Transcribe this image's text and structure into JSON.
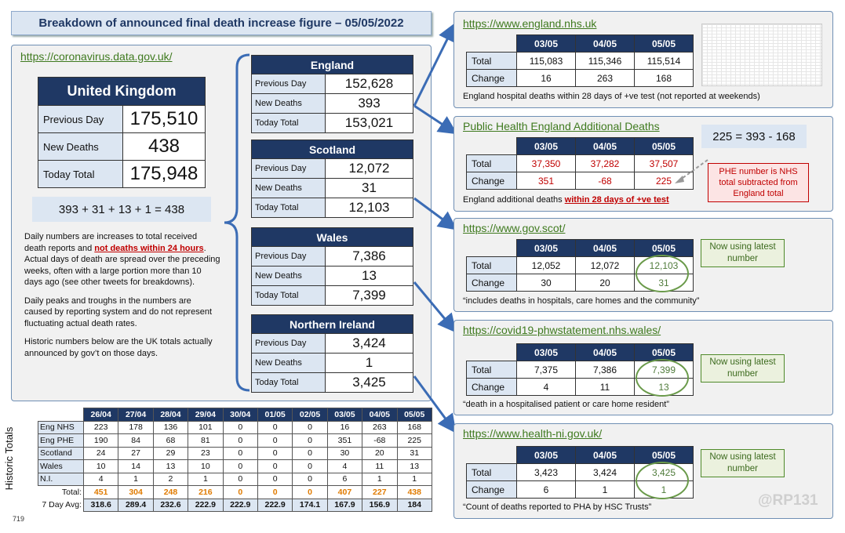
{
  "title": "Breakdown of announced final death increase figure – 05/05/2022",
  "left": {
    "source": "https://coronavirus.data.gov.uk/",
    "uk": {
      "name": "United Kingdom",
      "prev_label": "Previous Day",
      "prev": "175,510",
      "new_label": "New Deaths",
      "new": "438",
      "today_label": "Today Total",
      "today": "175,948"
    },
    "equation": "393 + 31 + 13 + 1 = 438",
    "para1_a": "Daily numbers are increases to total received death reports and ",
    "para1_b": "not deaths within 24 hours",
    "para1_c": ". Actual days of death are spread over the preceding weeks, often with a large portion more than 10 days ago (see other tweets  for breakdowns).",
    "para2": "Daily peaks and troughs in the numbers are caused by reporting system and do not represent fluctuating actual death rates.",
    "para3": "Historic numbers below are the UK totals actually announced by gov’t on those days."
  },
  "regions": [
    {
      "name": "England",
      "prev_label": "Previous Day",
      "prev": "152,628",
      "new_label": "New Deaths",
      "new": "393",
      "today_label": "Today Total",
      "today": "153,021"
    },
    {
      "name": "Scotland",
      "prev_label": "Previous Day",
      "prev": "12,072",
      "new_label": "New Deaths",
      "new": "31",
      "today_label": "Today Total",
      "today": "12,103"
    },
    {
      "name": "Wales",
      "prev_label": "Previous Day",
      "prev": "7,386",
      "new_label": "New Deaths",
      "new": "13",
      "today_label": "Today Total",
      "today": "7,399"
    },
    {
      "name": "Northern Ireland",
      "prev_label": "Previous Day",
      "prev": "3,424",
      "new_label": "New Deaths",
      "new": "1",
      "today_label": "Today Total",
      "today": "3,425"
    }
  ],
  "sources": [
    {
      "link": "https://www.england.nhs.uk",
      "dates": [
        "03/05",
        "04/05",
        "05/05"
      ],
      "total_label": "Total",
      "totals": [
        "115,083",
        "115,346",
        "115,514"
      ],
      "change_label": "Change",
      "changes": [
        "16",
        "263",
        "168"
      ],
      "caption": "England hospital deaths within 28 days of +ve test (not reported at weekends)"
    },
    {
      "link": "Public Health England Additional Deaths",
      "dates": [
        "03/05",
        "04/05",
        "05/05"
      ],
      "total_label": "Total",
      "totals": [
        "37,350",
        "37,282",
        "37,507"
      ],
      "change_label": "Change",
      "changes": [
        "351",
        "-68",
        "225"
      ],
      "caption_a": "England additional deaths ",
      "caption_b": "within 28 days of +ve test",
      "formula": "225 = 393 - 168",
      "note": "PHE number  is NHS total subtracted from England total"
    },
    {
      "link": "https://www.gov.scot/",
      "dates": [
        "03/05",
        "04/05",
        "05/05"
      ],
      "total_label": "Total",
      "totals": [
        "12,052",
        "12,072",
        "12,103"
      ],
      "change_label": "Change",
      "changes": [
        "30",
        "20",
        "31"
      ],
      "caption": "“includes deaths in hospitals, care homes and the community”",
      "note": "Now using latest number"
    },
    {
      "link": "https://covid19-phwstatement.nhs.wales/",
      "dates": [
        "03/05",
        "04/05",
        "05/05"
      ],
      "total_label": "Total",
      "totals": [
        "7,375",
        "7,386",
        "7,399"
      ],
      "change_label": "Change",
      "changes": [
        "4",
        "11",
        "13"
      ],
      "caption": "“death  in a hospitalised patient or care home resident”",
      "note": "Now using latest number"
    },
    {
      "link": "https://www.health-ni.gov.uk/",
      "dates": [
        "03/05",
        "04/05",
        "05/05"
      ],
      "total_label": "Total",
      "totals": [
        "3,423",
        "3,424",
        "3,425"
      ],
      "change_label": "Change",
      "changes": [
        "6",
        "1",
        "1"
      ],
      "caption": "“Count of deaths reported to PHA by HSC Trusts”",
      "note": "Now using latest number"
    }
  ],
  "historic": {
    "side_label": "Historic Totals",
    "dates": [
      "26/04",
      "27/04",
      "28/04",
      "29/04",
      "30/04",
      "01/05",
      "02/05",
      "03/05",
      "04/05",
      "05/05"
    ],
    "rows": [
      {
        "label": "Eng NHS",
        "values": [
          "223",
          "178",
          "136",
          "101",
          "0",
          "0",
          "0",
          "16",
          "263",
          "168"
        ]
      },
      {
        "label": "Eng PHE",
        "values": [
          "190",
          "84",
          "68",
          "81",
          "0",
          "0",
          "0",
          "351",
          "-68",
          "225"
        ]
      },
      {
        "label": "Scotland",
        "values": [
          "24",
          "27",
          "29",
          "23",
          "0",
          "0",
          "0",
          "30",
          "20",
          "31"
        ]
      },
      {
        "label": "Wales",
        "values": [
          "10",
          "14",
          "13",
          "10",
          "0",
          "0",
          "0",
          "4",
          "11",
          "13"
        ]
      },
      {
        "label": "N.I.",
        "values": [
          "4",
          "1",
          "2",
          "1",
          "0",
          "0",
          "0",
          "6",
          "1",
          "1"
        ]
      }
    ],
    "total_label": "Total:",
    "totals": [
      "451",
      "304",
      "248",
      "216",
      "0",
      "0",
      "0",
      "407",
      "227",
      "438"
    ],
    "avg_label": "7 Day Avg:",
    "avgs": [
      "318.6",
      "289.4",
      "232.6",
      "222.9",
      "222.9",
      "222.9",
      "174.1",
      "167.9",
      "156.9",
      "184"
    ]
  },
  "page_number": "719",
  "watermark": "@RP131"
}
